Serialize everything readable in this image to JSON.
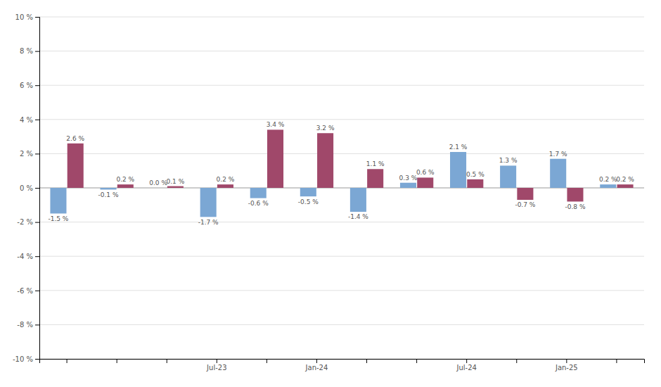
{
  "chart_data": {
    "type": "bar",
    "categories": [
      null,
      null,
      null,
      "Jul-23",
      null,
      "Jan-24",
      null,
      null,
      "Jul-24",
      null,
      "Jan-25",
      null
    ],
    "series": [
      {
        "color": "#7ba7d4",
        "values": [
          -1.5,
          -0.1,
          0.0,
          -1.7,
          -0.6,
          -0.5,
          -1.4,
          0.3,
          2.1,
          1.3,
          1.7,
          0.2
        ],
        "value_labels": [
          "-1.5 %",
          "-0.1 %",
          "0.0 %",
          "-1.7 %",
          "-0.6 %",
          "-0.5 %",
          "-1.4 %",
          "0.3 %",
          "2.1 %",
          "1.3 %",
          "1.7 %",
          "0.2 %"
        ]
      },
      {
        "color": "#a0486a",
        "values": [
          2.6,
          0.2,
          0.1,
          0.2,
          3.4,
          3.2,
          1.1,
          0.6,
          0.5,
          -0.7,
          -0.8,
          0.2
        ],
        "value_labels": [
          "2.6 %",
          "0.2 %",
          "0.1 %",
          "0.2 %",
          "3.4 %",
          "3.2 %",
          "1.1 %",
          "0.6 %",
          "0.5 %",
          "-0.7 %",
          "-0.8 %",
          "0.2 %"
        ]
      }
    ],
    "ylim": [
      -10,
      10
    ],
    "yticks": [
      {
        "value": -10,
        "label": "-10 %"
      },
      {
        "value": -8,
        "label": "-8 %"
      },
      {
        "value": -6,
        "label": "-6 %"
      },
      {
        "value": -4,
        "label": "-4 %"
      },
      {
        "value": -2,
        "label": "-2 %"
      },
      {
        "value": 0,
        "label": "0 %"
      },
      {
        "value": 2,
        "label": "2 %"
      },
      {
        "value": 4,
        "label": "4 %"
      },
      {
        "value": 6,
        "label": "6 %"
      },
      {
        "value": 8,
        "label": "8 %"
      },
      {
        "value": 10,
        "label": "10 %"
      }
    ],
    "grid": true,
    "data_labels": true
  }
}
